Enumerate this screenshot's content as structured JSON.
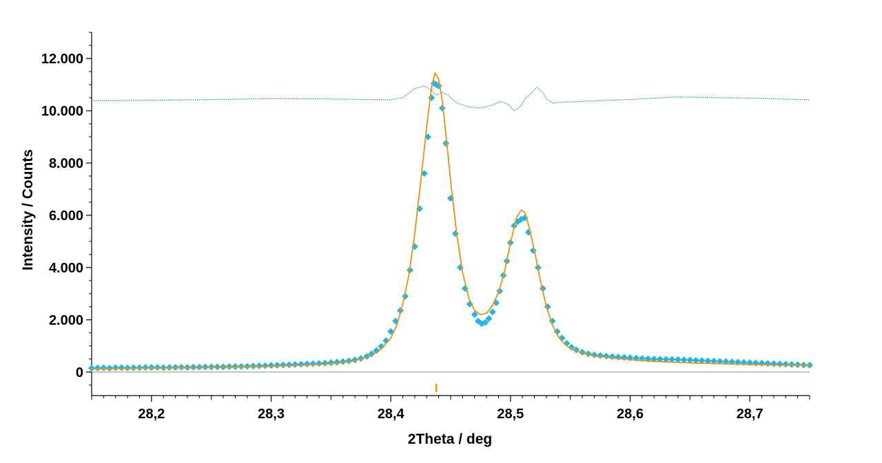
{
  "chart_data": {
    "type": "scatter",
    "xlabel": "2Theta / deg",
    "ylabel": "Intensity / Counts",
    "xlim": [
      28.15,
      28.75
    ],
    "ylim": [
      -900,
      13000
    ],
    "x_ticks": [
      28.2,
      28.3,
      28.4,
      28.5,
      28.6,
      28.7
    ],
    "x_tick_labels": [
      "28,2",
      "28,3",
      "28,4",
      "28,5",
      "28,6",
      "28,7"
    ],
    "y_ticks": [
      0,
      2000,
      4000,
      6000,
      8000,
      10000,
      12000
    ],
    "y_tick_labels": [
      "0",
      "2.000",
      "4.000",
      "6.000",
      "8.000",
      "10.000",
      "12.000"
    ],
    "grid": false,
    "colors": {
      "observed": "#1fb7ea",
      "calculated": "#f0900f",
      "difference": "#2a7fd0",
      "zero_line": "#999999",
      "reflection_marker": "#f0900f"
    },
    "series": [
      {
        "type": "scatter",
        "marker": "diamond",
        "points": [
          [
            28.15,
            150
          ],
          [
            28.155,
            155
          ],
          [
            28.16,
            160
          ],
          [
            28.165,
            150
          ],
          [
            28.17,
            165
          ],
          [
            28.175,
            170
          ],
          [
            28.18,
            160
          ],
          [
            28.185,
            165
          ],
          [
            28.19,
            170
          ],
          [
            28.195,
            175
          ],
          [
            28.2,
            175
          ],
          [
            28.205,
            180
          ],
          [
            28.21,
            170
          ],
          [
            28.215,
            175
          ],
          [
            28.22,
            180
          ],
          [
            28.225,
            185
          ],
          [
            28.23,
            180
          ],
          [
            28.235,
            190
          ],
          [
            28.24,
            190
          ],
          [
            28.245,
            195
          ],
          [
            28.25,
            195
          ],
          [
            28.255,
            200
          ],
          [
            28.26,
            200
          ],
          [
            28.265,
            210
          ],
          [
            28.27,
            210
          ],
          [
            28.275,
            215
          ],
          [
            28.28,
            220
          ],
          [
            28.285,
            230
          ],
          [
            28.29,
            240
          ],
          [
            28.295,
            245
          ],
          [
            28.3,
            255
          ],
          [
            28.305,
            260
          ],
          [
            28.31,
            270
          ],
          [
            28.315,
            280
          ],
          [
            28.32,
            290
          ],
          [
            28.325,
            300
          ],
          [
            28.33,
            310
          ],
          [
            28.335,
            320
          ],
          [
            28.34,
            330
          ],
          [
            28.345,
            345
          ],
          [
            28.35,
            360
          ],
          [
            28.355,
            380
          ],
          [
            28.36,
            400
          ],
          [
            28.365,
            430
          ],
          [
            28.37,
            470
          ],
          [
            28.375,
            520
          ],
          [
            28.38,
            600
          ],
          [
            28.384,
            700
          ],
          [
            28.388,
            820
          ],
          [
            28.392,
            980
          ],
          [
            28.396,
            1200
          ],
          [
            28.4,
            1550
          ],
          [
            28.404,
            1950
          ],
          [
            28.408,
            2350
          ],
          [
            28.412,
            2900
          ],
          [
            28.416,
            3900
          ],
          [
            28.42,
            4800
          ],
          [
            28.424,
            6250
          ],
          [
            28.428,
            7600
          ],
          [
            28.431,
            9000
          ],
          [
            28.434,
            10500
          ],
          [
            28.436,
            11050
          ],
          [
            28.438,
            11000
          ],
          [
            28.44,
            10950
          ],
          [
            28.443,
            10100
          ],
          [
            28.446,
            8750
          ],
          [
            28.45,
            6650
          ],
          [
            28.454,
            5300
          ],
          [
            28.458,
            4000
          ],
          [
            28.462,
            3200
          ],
          [
            28.466,
            2600
          ],
          [
            28.47,
            2200
          ],
          [
            28.473,
            1950
          ],
          [
            28.476,
            1850
          ],
          [
            28.479,
            1900
          ],
          [
            28.482,
            2050
          ],
          [
            28.485,
            2300
          ],
          [
            28.488,
            2650
          ],
          [
            28.491,
            3100
          ],
          [
            28.494,
            3700
          ],
          [
            28.497,
            4250
          ],
          [
            28.5,
            4950
          ],
          [
            28.503,
            5600
          ],
          [
            28.506,
            5750
          ],
          [
            28.509,
            5850
          ],
          [
            28.512,
            5900
          ],
          [
            28.515,
            5350
          ],
          [
            28.519,
            4650
          ],
          [
            28.523,
            4000
          ],
          [
            28.527,
            3200
          ],
          [
            28.531,
            2500
          ],
          [
            28.535,
            1950
          ],
          [
            28.539,
            1550
          ],
          [
            28.543,
            1300
          ],
          [
            28.547,
            1100
          ],
          [
            28.551,
            950
          ],
          [
            28.555,
            850
          ],
          [
            28.56,
            760
          ],
          [
            28.565,
            700
          ],
          [
            28.57,
            660
          ],
          [
            28.575,
            630
          ],
          [
            28.58,
            610
          ],
          [
            28.585,
            590
          ],
          [
            28.59,
            575
          ],
          [
            28.595,
            560
          ],
          [
            28.6,
            545
          ],
          [
            28.605,
            530
          ],
          [
            28.61,
            520
          ],
          [
            28.615,
            510
          ],
          [
            28.62,
            500
          ],
          [
            28.625,
            495
          ],
          [
            28.63,
            490
          ],
          [
            28.635,
            485
          ],
          [
            28.64,
            480
          ],
          [
            28.645,
            470
          ],
          [
            28.65,
            460
          ],
          [
            28.655,
            450
          ],
          [
            28.66,
            440
          ],
          [
            28.665,
            430
          ],
          [
            28.67,
            420
          ],
          [
            28.675,
            410
          ],
          [
            28.68,
            400
          ],
          [
            28.685,
            390
          ],
          [
            28.69,
            380
          ],
          [
            28.695,
            370
          ],
          [
            28.7,
            360
          ],
          [
            28.705,
            350
          ],
          [
            28.71,
            340
          ],
          [
            28.715,
            330
          ],
          [
            28.72,
            320
          ],
          [
            28.725,
            310
          ],
          [
            28.73,
            300
          ],
          [
            28.735,
            290
          ],
          [
            28.74,
            280
          ],
          [
            28.745,
            270
          ],
          [
            28.75,
            265
          ]
        ]
      },
      {
        "type": "line",
        "points": [
          [
            28.15,
            120
          ],
          [
            28.2,
            150
          ],
          [
            28.25,
            170
          ],
          [
            28.3,
            220
          ],
          [
            28.33,
            270
          ],
          [
            28.35,
            320
          ],
          [
            28.36,
            370
          ],
          [
            28.37,
            440
          ],
          [
            28.38,
            560
          ],
          [
            28.39,
            800
          ],
          [
            28.4,
            1300
          ],
          [
            28.405,
            1800
          ],
          [
            28.41,
            2600
          ],
          [
            28.415,
            3700
          ],
          [
            28.42,
            5300
          ],
          [
            28.425,
            7300
          ],
          [
            28.43,
            9400
          ],
          [
            28.434,
            10900
          ],
          [
            28.437,
            11450
          ],
          [
            28.44,
            11200
          ],
          [
            28.443,
            10400
          ],
          [
            28.446,
            9100
          ],
          [
            28.45,
            7300
          ],
          [
            28.455,
            5300
          ],
          [
            28.46,
            3800
          ],
          [
            28.465,
            2850
          ],
          [
            28.47,
            2350
          ],
          [
            28.475,
            2200
          ],
          [
            28.48,
            2250
          ],
          [
            28.485,
            2550
          ],
          [
            28.49,
            3050
          ],
          [
            28.495,
            3850
          ],
          [
            28.5,
            4950
          ],
          [
            28.505,
            5900
          ],
          [
            28.509,
            6200
          ],
          [
            28.512,
            6100
          ],
          [
            28.515,
            5650
          ],
          [
            28.52,
            4650
          ],
          [
            28.525,
            3500
          ],
          [
            28.53,
            2500
          ],
          [
            28.535,
            1800
          ],
          [
            28.54,
            1350
          ],
          [
            28.545,
            1080
          ],
          [
            28.55,
            900
          ],
          [
            28.56,
            720
          ],
          [
            28.57,
            620
          ],
          [
            28.58,
            560
          ],
          [
            28.6,
            470
          ],
          [
            28.62,
            410
          ],
          [
            28.65,
            350
          ],
          [
            28.7,
            290
          ],
          [
            28.75,
            250
          ]
        ]
      },
      {
        "type": "line",
        "style": "dotted",
        "points": [
          [
            28.15,
            10380
          ],
          [
            28.2,
            10400
          ],
          [
            28.25,
            10430
          ],
          [
            28.3,
            10460
          ],
          [
            28.35,
            10450
          ],
          [
            28.4,
            10420
          ],
          [
            28.41,
            10500
          ],
          [
            28.42,
            10850
          ],
          [
            28.428,
            10950
          ],
          [
            28.433,
            10800
          ],
          [
            28.438,
            10600
          ],
          [
            28.443,
            10700
          ],
          [
            28.448,
            10600
          ],
          [
            28.455,
            10300
          ],
          [
            28.465,
            10150
          ],
          [
            28.475,
            10100
          ],
          [
            28.485,
            10220
          ],
          [
            28.492,
            10350
          ],
          [
            28.498,
            10250
          ],
          [
            28.503,
            10000
          ],
          [
            28.508,
            10150
          ],
          [
            28.513,
            10500
          ],
          [
            28.518,
            10700
          ],
          [
            28.522,
            10900
          ],
          [
            28.527,
            10700
          ],
          [
            28.53,
            10450
          ],
          [
            28.535,
            10300
          ],
          [
            28.545,
            10330
          ],
          [
            28.56,
            10360
          ],
          [
            28.6,
            10430
          ],
          [
            28.64,
            10530
          ],
          [
            28.65,
            10520
          ],
          [
            28.7,
            10480
          ],
          [
            28.75,
            10420
          ]
        ]
      }
    ],
    "reflection_markers": [
      28.438
    ]
  }
}
